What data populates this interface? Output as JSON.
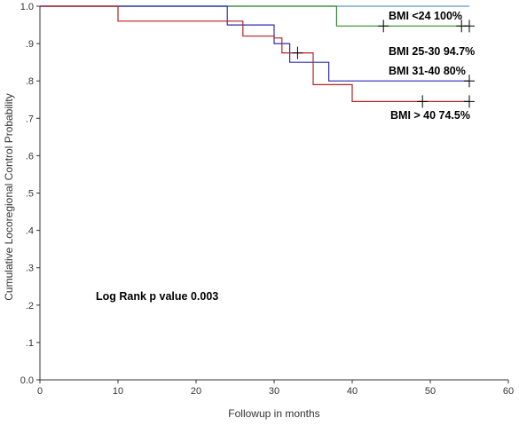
{
  "chart_data": {
    "type": "line",
    "step": true,
    "xlabel": "Followup in months",
    "ylabel": "Cumulative Locoregional Control Probability",
    "xlim": [
      0,
      60
    ],
    "ylim": [
      0.0,
      1.0
    ],
    "x_ticks": [
      "0",
      "10",
      "20",
      "30",
      "40",
      "50",
      "60"
    ],
    "y_ticks": [
      "0.0",
      ".1",
      ".2",
      ".3",
      ".4",
      ".5",
      ".6",
      ".7",
      ".8",
      ".9",
      "1.0"
    ],
    "grid": false,
    "annotation": "Log Rank p value 0.003",
    "series": [
      {
        "name": "BMI <24 100%",
        "color": "#5b9bd5",
        "points": [
          [
            0,
            1.0
          ],
          [
            55,
            1.0
          ]
        ],
        "censors": []
      },
      {
        "name": "BMI 25-30 94.7%",
        "color": "#2e8b2e",
        "points": [
          [
            0,
            1.0
          ],
          [
            38,
            1.0
          ],
          [
            38,
            0.947
          ],
          [
            55,
            0.947
          ]
        ],
        "censors": [
          44,
          54,
          55
        ]
      },
      {
        "name": "BMI 31-40 80%",
        "color": "#2b2bb0",
        "points": [
          [
            0,
            1.0
          ],
          [
            24,
            1.0
          ],
          [
            24,
            0.95
          ],
          [
            30,
            0.95
          ],
          [
            30,
            0.9
          ],
          [
            32,
            0.9
          ],
          [
            32,
            0.85
          ],
          [
            37,
            0.85
          ],
          [
            37,
            0.8
          ],
          [
            55,
            0.8
          ]
        ],
        "censors": [
          55
        ]
      },
      {
        "name": "BMI > 40 74.5%",
        "color": "#b22222",
        "points": [
          [
            0,
            1.0
          ],
          [
            10,
            1.0
          ],
          [
            10,
            0.96
          ],
          [
            24,
            0.96
          ],
          [
            24,
            0.96
          ],
          [
            26,
            0.96
          ],
          [
            26,
            0.92
          ],
          [
            30,
            0.92
          ],
          [
            30,
            0.915
          ],
          [
            31,
            0.915
          ],
          [
            31,
            0.875
          ],
          [
            33,
            0.875
          ],
          [
            33,
            0.875
          ],
          [
            35,
            0.875
          ],
          [
            35,
            0.79
          ],
          [
            40,
            0.79
          ],
          [
            40,
            0.745
          ],
          [
            55,
            0.745
          ]
        ],
        "censors": [
          33,
          49,
          55
        ]
      }
    ]
  }
}
